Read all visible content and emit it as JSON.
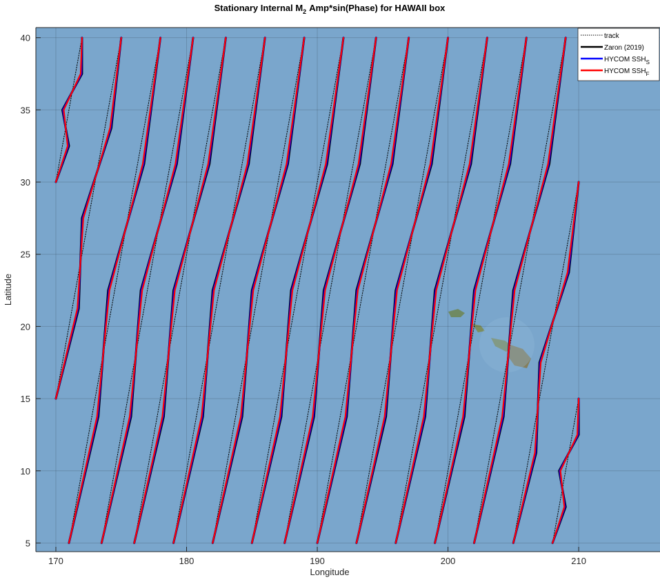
{
  "chart_data": {
    "type": "line",
    "title": {
      "text": "Stationary Internal M",
      "sub": "2",
      "tail": "Amp*sin(Phase) for HAWAII box"
    },
    "x_label": "Longitude",
    "y_label": "Latitude",
    "xlim": [
      168.47,
      216.22
    ],
    "ylim": [
      4.4,
      40.7
    ],
    "xticks": [
      170,
      180,
      190,
      200,
      210
    ],
    "yticks": [
      5,
      10,
      15,
      20,
      25,
      30,
      35,
      40
    ],
    "grid": true,
    "legend": "top-right",
    "series": [
      {
        "name": "track",
        "color": "#000000",
        "dash": "dotted",
        "x": [
          170,
          172,
          null,
          170,
          175,
          null,
          171,
          178,
          null,
          173.5,
          180.5,
          null,
          176,
          183,
          null,
          179,
          186,
          null,
          182,
          189,
          null,
          185,
          192,
          null,
          187.5,
          194.5,
          null,
          190,
          197,
          null,
          193,
          200,
          null,
          196,
          203,
          null,
          199,
          206,
          null,
          202,
          209,
          null,
          205,
          210,
          null,
          208,
          210
        ],
        "y": [
          30,
          40,
          null,
          15,
          40,
          null,
          5,
          40,
          null,
          5,
          40,
          null,
          5,
          40,
          null,
          5,
          40,
          null,
          5,
          40,
          null,
          5,
          40,
          null,
          5,
          40,
          null,
          5,
          40,
          null,
          5,
          40,
          null,
          5,
          40,
          null,
          5,
          40,
          null,
          5,
          40,
          null,
          5,
          30,
          null,
          5,
          15
        ]
      },
      {
        "name": "Zaron (2019)",
        "color": "#000000",
        "x": [
          170,
          171,
          170.5,
          172,
          172,
          null,
          170,
          171.75,
          172,
          174.25,
          175,
          null,
          171,
          173.25,
          174,
          176.75,
          178,
          null,
          173.5,
          175.75,
          176.5,
          179.25,
          180.5,
          null,
          176,
          178.25,
          179,
          181.75,
          183,
          null,
          179,
          181.25,
          182,
          184.75,
          186,
          null,
          182,
          184.25,
          185,
          187.75,
          189,
          null,
          185,
          187.25,
          188,
          190.75,
          192,
          null,
          187.5,
          189.75,
          190.5,
          193.25,
          194.5,
          null,
          190,
          192.25,
          193,
          195.75,
          197,
          null,
          193,
          195.25,
          196,
          198.75,
          200,
          null,
          196,
          198.25,
          199,
          201.75,
          203,
          null,
          199,
          201.25,
          202,
          204.75,
          206,
          null,
          202,
          204.25,
          205,
          207.75,
          209,
          null,
          205,
          206.75,
          207,
          209.25,
          210,
          null,
          208,
          209,
          208.5,
          210,
          210
        ],
        "y": [
          30,
          32.5,
          35,
          37.5,
          40,
          null,
          15,
          21.25,
          27.5,
          33.75,
          40,
          null,
          5,
          13.75,
          22.5,
          31.25,
          40,
          null,
          5,
          13.75,
          22.5,
          31.25,
          40,
          null,
          5,
          13.75,
          22.5,
          31.25,
          40,
          null,
          5,
          13.75,
          22.5,
          31.25,
          40,
          null,
          5,
          13.75,
          22.5,
          31.25,
          40,
          null,
          5,
          13.75,
          22.5,
          31.25,
          40,
          null,
          5,
          13.75,
          22.5,
          31.25,
          40,
          null,
          5,
          13.75,
          22.5,
          31.25,
          40,
          null,
          5,
          13.75,
          22.5,
          31.25,
          40,
          null,
          5,
          13.75,
          22.5,
          31.25,
          40,
          null,
          5,
          13.75,
          22.5,
          31.25,
          40,
          null,
          5,
          13.75,
          22.5,
          31.25,
          40,
          null,
          5,
          11.25,
          17.5,
          23.75,
          30,
          null,
          5,
          7.5,
          10,
          12.5,
          15
        ]
      },
      {
        "name": "HYCOM SSH",
        "name_sub": "S",
        "color": "#0000ff",
        "x": [
          170,
          170.95,
          170.55,
          171.95,
          172,
          null,
          170,
          171.7,
          172.05,
          174.2,
          175,
          null,
          171,
          173.2,
          174.05,
          176.7,
          178,
          null,
          173.5,
          175.7,
          176.55,
          179.2,
          180.5,
          null,
          176,
          178.2,
          179.05,
          181.7,
          183,
          null,
          179,
          181.2,
          182.05,
          184.7,
          186,
          null,
          182,
          184.2,
          185.05,
          187.7,
          189,
          null,
          185,
          187.2,
          188.05,
          190.7,
          192,
          null,
          187.5,
          189.7,
          190.55,
          193.2,
          194.5,
          null,
          190,
          192.2,
          193.05,
          195.7,
          197,
          null,
          193,
          195.2,
          196.05,
          198.7,
          200,
          null,
          196,
          198.2,
          199.05,
          201.7,
          203,
          null,
          199,
          201.2,
          202.05,
          204.7,
          206,
          null,
          202,
          204.2,
          205.05,
          207.7,
          209,
          null,
          205,
          206.7,
          207.05,
          209.2,
          210,
          null,
          208,
          208.95,
          208.55,
          209.95,
          210
        ],
        "y": [
          30,
          32.5,
          35,
          37.5,
          40,
          null,
          15,
          21.25,
          27.5,
          33.75,
          40,
          null,
          5,
          13.75,
          22.5,
          31.25,
          40,
          null,
          5,
          13.75,
          22.5,
          31.25,
          40,
          null,
          5,
          13.75,
          22.5,
          31.25,
          40,
          null,
          5,
          13.75,
          22.5,
          31.25,
          40,
          null,
          5,
          13.75,
          22.5,
          31.25,
          40,
          null,
          5,
          13.75,
          22.5,
          31.25,
          40,
          null,
          5,
          13.75,
          22.5,
          31.25,
          40,
          null,
          5,
          13.75,
          22.5,
          31.25,
          40,
          null,
          5,
          13.75,
          22.5,
          31.25,
          40,
          null,
          5,
          13.75,
          22.5,
          31.25,
          40,
          null,
          5,
          13.75,
          22.5,
          31.25,
          40,
          null,
          5,
          13.75,
          22.5,
          31.25,
          40,
          null,
          5,
          11.25,
          17.5,
          23.75,
          30,
          null,
          5,
          7.5,
          10,
          12.5,
          15
        ]
      },
      {
        "name": "HYCOM SSH",
        "name_sub": "F",
        "color": "#ff0000",
        "x": [
          170,
          170.9,
          170.6,
          171.9,
          172,
          null,
          170,
          171.65,
          172.1,
          174.15,
          175,
          null,
          171,
          173.15,
          174.1,
          176.65,
          178,
          null,
          173.5,
          175.65,
          176.6,
          179.15,
          180.5,
          null,
          176,
          178.15,
          179.1,
          181.65,
          183,
          null,
          179,
          181.15,
          182.1,
          184.65,
          186,
          null,
          182,
          184.15,
          185.1,
          187.65,
          189,
          null,
          185,
          187.15,
          188.1,
          190.65,
          192,
          null,
          187.5,
          189.65,
          190.6,
          193.15,
          194.5,
          null,
          190,
          192.15,
          193.1,
          195.65,
          197,
          null,
          193,
          195.15,
          196.1,
          198.65,
          200,
          null,
          196,
          198.15,
          199.1,
          201.65,
          203,
          null,
          199,
          201.15,
          202.1,
          204.65,
          206,
          null,
          202,
          204.15,
          205.1,
          207.65,
          209,
          null,
          205,
          206.65,
          207.1,
          209.15,
          210,
          null,
          208,
          208.9,
          208.6,
          209.9,
          210
        ],
        "y": [
          30,
          32.5,
          35,
          37.5,
          40,
          null,
          15,
          21.25,
          27.5,
          33.75,
          40,
          null,
          5,
          13.75,
          22.5,
          31.25,
          40,
          null,
          5,
          13.75,
          22.5,
          31.25,
          40,
          null,
          5,
          13.75,
          22.5,
          31.25,
          40,
          null,
          5,
          13.75,
          22.5,
          31.25,
          40,
          null,
          5,
          13.75,
          22.5,
          31.25,
          40,
          null,
          5,
          13.75,
          22.5,
          31.25,
          40,
          null,
          5,
          13.75,
          22.5,
          31.25,
          40,
          null,
          5,
          13.75,
          22.5,
          31.25,
          40,
          null,
          5,
          13.75,
          22.5,
          31.25,
          40,
          null,
          5,
          13.75,
          22.5,
          31.25,
          40,
          null,
          5,
          13.75,
          22.5,
          31.25,
          40,
          null,
          5,
          13.75,
          22.5,
          31.25,
          40,
          null,
          5,
          11.25,
          17.5,
          23.75,
          30,
          null,
          5,
          7.5,
          10,
          12.5,
          15
        ]
      }
    ]
  }
}
